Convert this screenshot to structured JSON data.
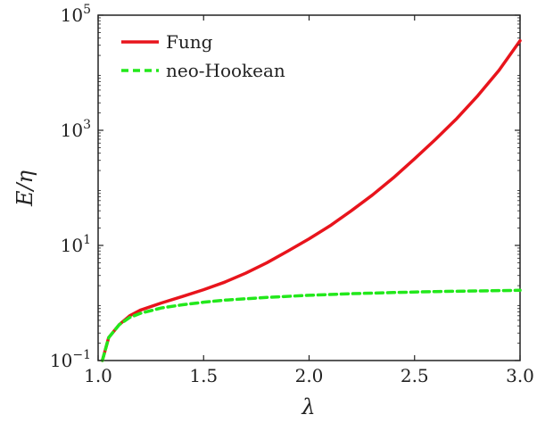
{
  "chart_data": {
    "type": "line",
    "title": "",
    "xlabel": "λ",
    "ylabel": "E/η",
    "xlim": [
      1.0,
      3.0
    ],
    "ylim_log10": [
      -1,
      5
    ],
    "yscale": "log",
    "grid": false,
    "legend_position": "top-left",
    "x_ticks": [
      {
        "value": 1.0,
        "label": "1.0"
      },
      {
        "value": 1.5,
        "label": "1.5"
      },
      {
        "value": 2.0,
        "label": "2.0"
      },
      {
        "value": 2.5,
        "label": "2.5"
      },
      {
        "value": 3.0,
        "label": "3.0"
      }
    ],
    "y_ticks": [
      {
        "exp": -1,
        "base": "10",
        "sup": "−1"
      },
      {
        "exp": 1,
        "base": "10",
        "sup": "1"
      },
      {
        "exp": 3,
        "base": "10",
        "sup": "3"
      },
      {
        "exp": 5,
        "base": "10",
        "sup": "5"
      }
    ],
    "series": [
      {
        "name": "Fung",
        "color": "#e8141c",
        "style": "solid",
        "x": [
          1.02,
          1.05,
          1.1,
          1.15,
          1.2,
          1.3,
          1.4,
          1.5,
          1.6,
          1.7,
          1.8,
          1.9,
          2.0,
          2.1,
          2.2,
          2.3,
          2.4,
          2.5,
          2.6,
          2.7,
          2.8,
          2.9,
          3.0
        ],
        "y": [
          0.1,
          0.25,
          0.42,
          0.6,
          0.75,
          1.0,
          1.3,
          1.7,
          2.3,
          3.3,
          5.0,
          8.0,
          13.0,
          22.0,
          40.0,
          75.0,
          150.0,
          320.0,
          700.0,
          1600.0,
          4000.0,
          11000.0,
          36000.0
        ]
      },
      {
        "name": "neo-Hookean",
        "color": "#22e81b",
        "style": "dashed",
        "x": [
          1.02,
          1.05,
          1.1,
          1.15,
          1.2,
          1.3,
          1.4,
          1.5,
          1.6,
          1.8,
          2.0,
          2.2,
          2.4,
          2.6,
          2.8,
          3.0
        ],
        "y": [
          0.1,
          0.25,
          0.42,
          0.56,
          0.66,
          0.82,
          0.93,
          1.03,
          1.12,
          1.25,
          1.36,
          1.45,
          1.52,
          1.58,
          1.62,
          1.66
        ]
      }
    ]
  }
}
